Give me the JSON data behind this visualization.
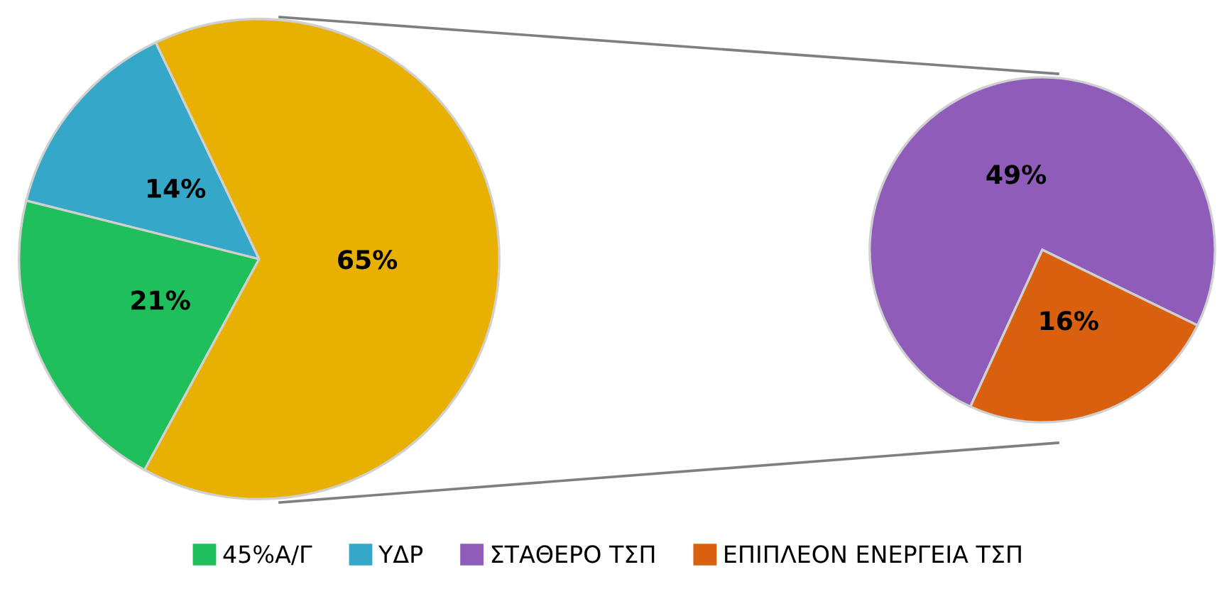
{
  "chart_data": [
    {
      "type": "pie",
      "categories": [
        "45%Α/Γ",
        "ΥΔΡ",
        null
      ],
      "values": [
        21,
        14,
        65
      ],
      "colors": [
        "#1fbf5c",
        "#35a7c9",
        "#e8b000"
      ],
      "value_labels": [
        "21%",
        "14%",
        "65%"
      ],
      "legend": "bottom"
    },
    {
      "type": "pie",
      "categories": [
        "ΣΤΑΘΕΡΟ ΤΣΠ",
        "ΕΠΙΠΛΕΟΝ ΕΝΕΡΓΕΙΑ ΤΣΠ"
      ],
      "values": [
        49,
        16
      ],
      "colors": [
        "#8f5cba",
        "#d9600f"
      ],
      "value_labels": [
        "49%",
        "16%"
      ],
      "legend": "bottom"
    }
  ]
}
